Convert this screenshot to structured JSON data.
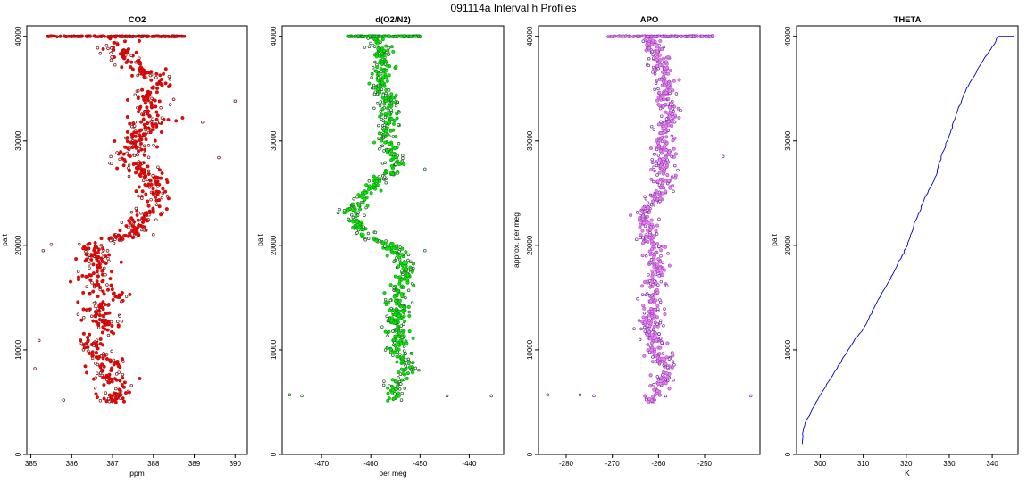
{
  "page": {
    "title": "091114a   Interval h Profiles"
  },
  "chart_data": [
    {
      "type": "scatter",
      "title": "CO2",
      "xlabel": "ppm",
      "ylabel": "palt",
      "xlim": [
        384.9,
        390.3
      ],
      "ylim": [
        0,
        41000
      ],
      "xticks": [
        385,
        386,
        387,
        388,
        389,
        390
      ],
      "yticks": [
        0,
        10000,
        20000,
        30000,
        40000
      ],
      "colors": {
        "fill": "#ff0000",
        "edge": "#7a1010"
      },
      "profile": [
        [
          5000,
          386.9
        ],
        [
          6000,
          387.2
        ],
        [
          7000,
          387.0
        ],
        [
          8000,
          386.8
        ],
        [
          9000,
          386.9
        ],
        [
          10000,
          386.6
        ],
        [
          11000,
          386.5
        ],
        [
          12000,
          386.9
        ],
        [
          13000,
          386.7
        ],
        [
          14000,
          386.6
        ],
        [
          15000,
          387.0
        ],
        [
          16000,
          386.7
        ],
        [
          17000,
          386.5
        ],
        [
          18000,
          386.8
        ],
        [
          19000,
          386.6
        ],
        [
          20000,
          386.4
        ],
        [
          21000,
          387.5
        ],
        [
          22000,
          387.6
        ],
        [
          23000,
          387.8
        ],
        [
          24000,
          387.9
        ],
        [
          25000,
          388.0
        ],
        [
          26000,
          388.1
        ],
        [
          27000,
          387.7
        ],
        [
          28000,
          387.4
        ],
        [
          29000,
          387.5
        ],
        [
          30000,
          387.6
        ],
        [
          31000,
          387.8
        ],
        [
          32000,
          388.0
        ],
        [
          33000,
          387.9
        ],
        [
          34000,
          387.8
        ],
        [
          35000,
          388.1
        ],
        [
          36000,
          388.0
        ],
        [
          37000,
          387.6
        ],
        [
          38000,
          387.3
        ],
        [
          39000,
          387.1
        ],
        [
          40000,
          387.0
        ]
      ],
      "spread": 0.7,
      "top_band": [
        385.4,
        388.8
      ],
      "outliers": [
        [
          385.1,
          8200
        ],
        [
          385.2,
          10900
        ],
        [
          385.3,
          19500
        ],
        [
          385.5,
          20100
        ],
        [
          389.2,
          31800
        ],
        [
          389.6,
          28400
        ],
        [
          390.0,
          33800
        ],
        [
          385.8,
          5200
        ]
      ]
    },
    {
      "type": "scatter",
      "title": "d(O2/N2)",
      "xlabel": "per meg",
      "ylabel": "palt",
      "xlim": [
        -478,
        -433
      ],
      "ylim": [
        0,
        41000
      ],
      "xticks": [
        -470,
        -460,
        -450,
        -440
      ],
      "yticks": [
        0,
        10000,
        20000,
        30000,
        40000
      ],
      "colors": {
        "fill": "#00ee00",
        "edge": "#1a5a1a"
      },
      "profile": [
        [
          5000,
          -456
        ],
        [
          6000,
          -455
        ],
        [
          7000,
          -455
        ],
        [
          8000,
          -452
        ],
        [
          9000,
          -453
        ],
        [
          10000,
          -455
        ],
        [
          11000,
          -454
        ],
        [
          12000,
          -455
        ],
        [
          13000,
          -455
        ],
        [
          14000,
          -454
        ],
        [
          15000,
          -455
        ],
        [
          16000,
          -454
        ],
        [
          17000,
          -453
        ],
        [
          18000,
          -453
        ],
        [
          19000,
          -454
        ],
        [
          20000,
          -456
        ],
        [
          21000,
          -461
        ],
        [
          22000,
          -463
        ],
        [
          23000,
          -464
        ],
        [
          24000,
          -463
        ],
        [
          25000,
          -461
        ],
        [
          26000,
          -459
        ],
        [
          27000,
          -456
        ],
        [
          28000,
          -455
        ],
        [
          29000,
          -456
        ],
        [
          30000,
          -457
        ],
        [
          31000,
          -457
        ],
        [
          32000,
          -456
        ],
        [
          33000,
          -457
        ],
        [
          34000,
          -456
        ],
        [
          35000,
          -458
        ],
        [
          36000,
          -458
        ],
        [
          37000,
          -457
        ],
        [
          38000,
          -458
        ],
        [
          39000,
          -458
        ],
        [
          40000,
          -459
        ]
      ],
      "spread": 3.2,
      "top_band": [
        -465,
        -450
      ],
      "outliers": [
        [
          -476.5,
          5700
        ],
        [
          -474,
          5600
        ],
        [
          -444.5,
          5600
        ],
        [
          -435.5,
          5600
        ],
        [
          -449,
          27300
        ],
        [
          -449,
          19500
        ]
      ]
    },
    {
      "type": "scatter",
      "title": "APO",
      "xlabel": "",
      "ylabel": "approx. per meg",
      "xlim": [
        -286,
        -238
      ],
      "ylim": [
        0,
        41000
      ],
      "xticks": [
        -280,
        -270,
        -260,
        -250
      ],
      "yticks": [
        0,
        10000,
        20000,
        30000,
        40000
      ],
      "colors": {
        "fill": "#ee82ee",
        "edge": "#7a2aaa"
      },
      "profile": [
        [
          5000,
          -262
        ],
        [
          6000,
          -260
        ],
        [
          7000,
          -259
        ],
        [
          8000,
          -258
        ],
        [
          9000,
          -259
        ],
        [
          10000,
          -261
        ],
        [
          11000,
          -261
        ],
        [
          12000,
          -262
        ],
        [
          13000,
          -262
        ],
        [
          14000,
          -261
        ],
        [
          15000,
          -261
        ],
        [
          16000,
          -261
        ],
        [
          17000,
          -260
        ],
        [
          18000,
          -260
        ],
        [
          19000,
          -261
        ],
        [
          20000,
          -261
        ],
        [
          21000,
          -262
        ],
        [
          22000,
          -263
        ],
        [
          23000,
          -263
        ],
        [
          24000,
          -261
        ],
        [
          25000,
          -260
        ],
        [
          26000,
          -259
        ],
        [
          27000,
          -259
        ],
        [
          28000,
          -259
        ],
        [
          29000,
          -259
        ],
        [
          30000,
          -259
        ],
        [
          31000,
          -259
        ],
        [
          32000,
          -258
        ],
        [
          33000,
          -258
        ],
        [
          34000,
          -259
        ],
        [
          35000,
          -258
        ],
        [
          36000,
          -259
        ],
        [
          37000,
          -259
        ],
        [
          38000,
          -260
        ],
        [
          39000,
          -261
        ],
        [
          40000,
          -262
        ]
      ],
      "spread": 3.5,
      "top_band": [
        -271,
        -248
      ],
      "outliers": [
        [
          -284,
          5700
        ],
        [
          -277,
          5700
        ],
        [
          -240,
          5600
        ],
        [
          -246,
          28500
        ],
        [
          -274,
          5600
        ]
      ]
    },
    {
      "type": "line",
      "title": "THETA",
      "xlabel": "K",
      "ylabel": "palt",
      "xlim": [
        294.5,
        346
      ],
      "ylim": [
        0,
        41000
      ],
      "xticks": [
        300,
        310,
        320,
        330,
        340
      ],
      "yticks": [
        0,
        10000,
        20000,
        30000,
        40000
      ],
      "colors": {
        "line": "#0000cc"
      },
      "points": [
        [
          295.8,
          1000
        ],
        [
          295.9,
          2000
        ],
        [
          296.5,
          3000
        ],
        [
          297.8,
          4000
        ],
        [
          299.0,
          5000
        ],
        [
          300.5,
          6000
        ],
        [
          302.0,
          7000
        ],
        [
          303.5,
          8000
        ],
        [
          305.0,
          9000
        ],
        [
          306.5,
          10000
        ],
        [
          308.0,
          11000
        ],
        [
          310.0,
          12000
        ],
        [
          311.3,
          13000
        ],
        [
          312.5,
          14000
        ],
        [
          313.8,
          15000
        ],
        [
          315.2,
          16000
        ],
        [
          316.5,
          17000
        ],
        [
          317.8,
          18000
        ],
        [
          319.0,
          19000
        ],
        [
          320.3,
          20000
        ],
        [
          321.0,
          21000
        ],
        [
          321.8,
          22000
        ],
        [
          322.8,
          23000
        ],
        [
          323.8,
          24000
        ],
        [
          325.0,
          25000
        ],
        [
          326.2,
          26000
        ],
        [
          327.2,
          27000
        ],
        [
          327.8,
          28000
        ],
        [
          328.6,
          29000
        ],
        [
          329.5,
          30000
        ],
        [
          330.4,
          31000
        ],
        [
          331.2,
          32000
        ],
        [
          332.0,
          33000
        ],
        [
          333.0,
          34000
        ],
        [
          334.0,
          35000
        ],
        [
          335.5,
          36000
        ],
        [
          336.8,
          37000
        ],
        [
          338.3,
          38000
        ],
        [
          340.0,
          39000
        ],
        [
          341.5,
          40000
        ],
        [
          345.0,
          40000
        ]
      ]
    }
  ]
}
